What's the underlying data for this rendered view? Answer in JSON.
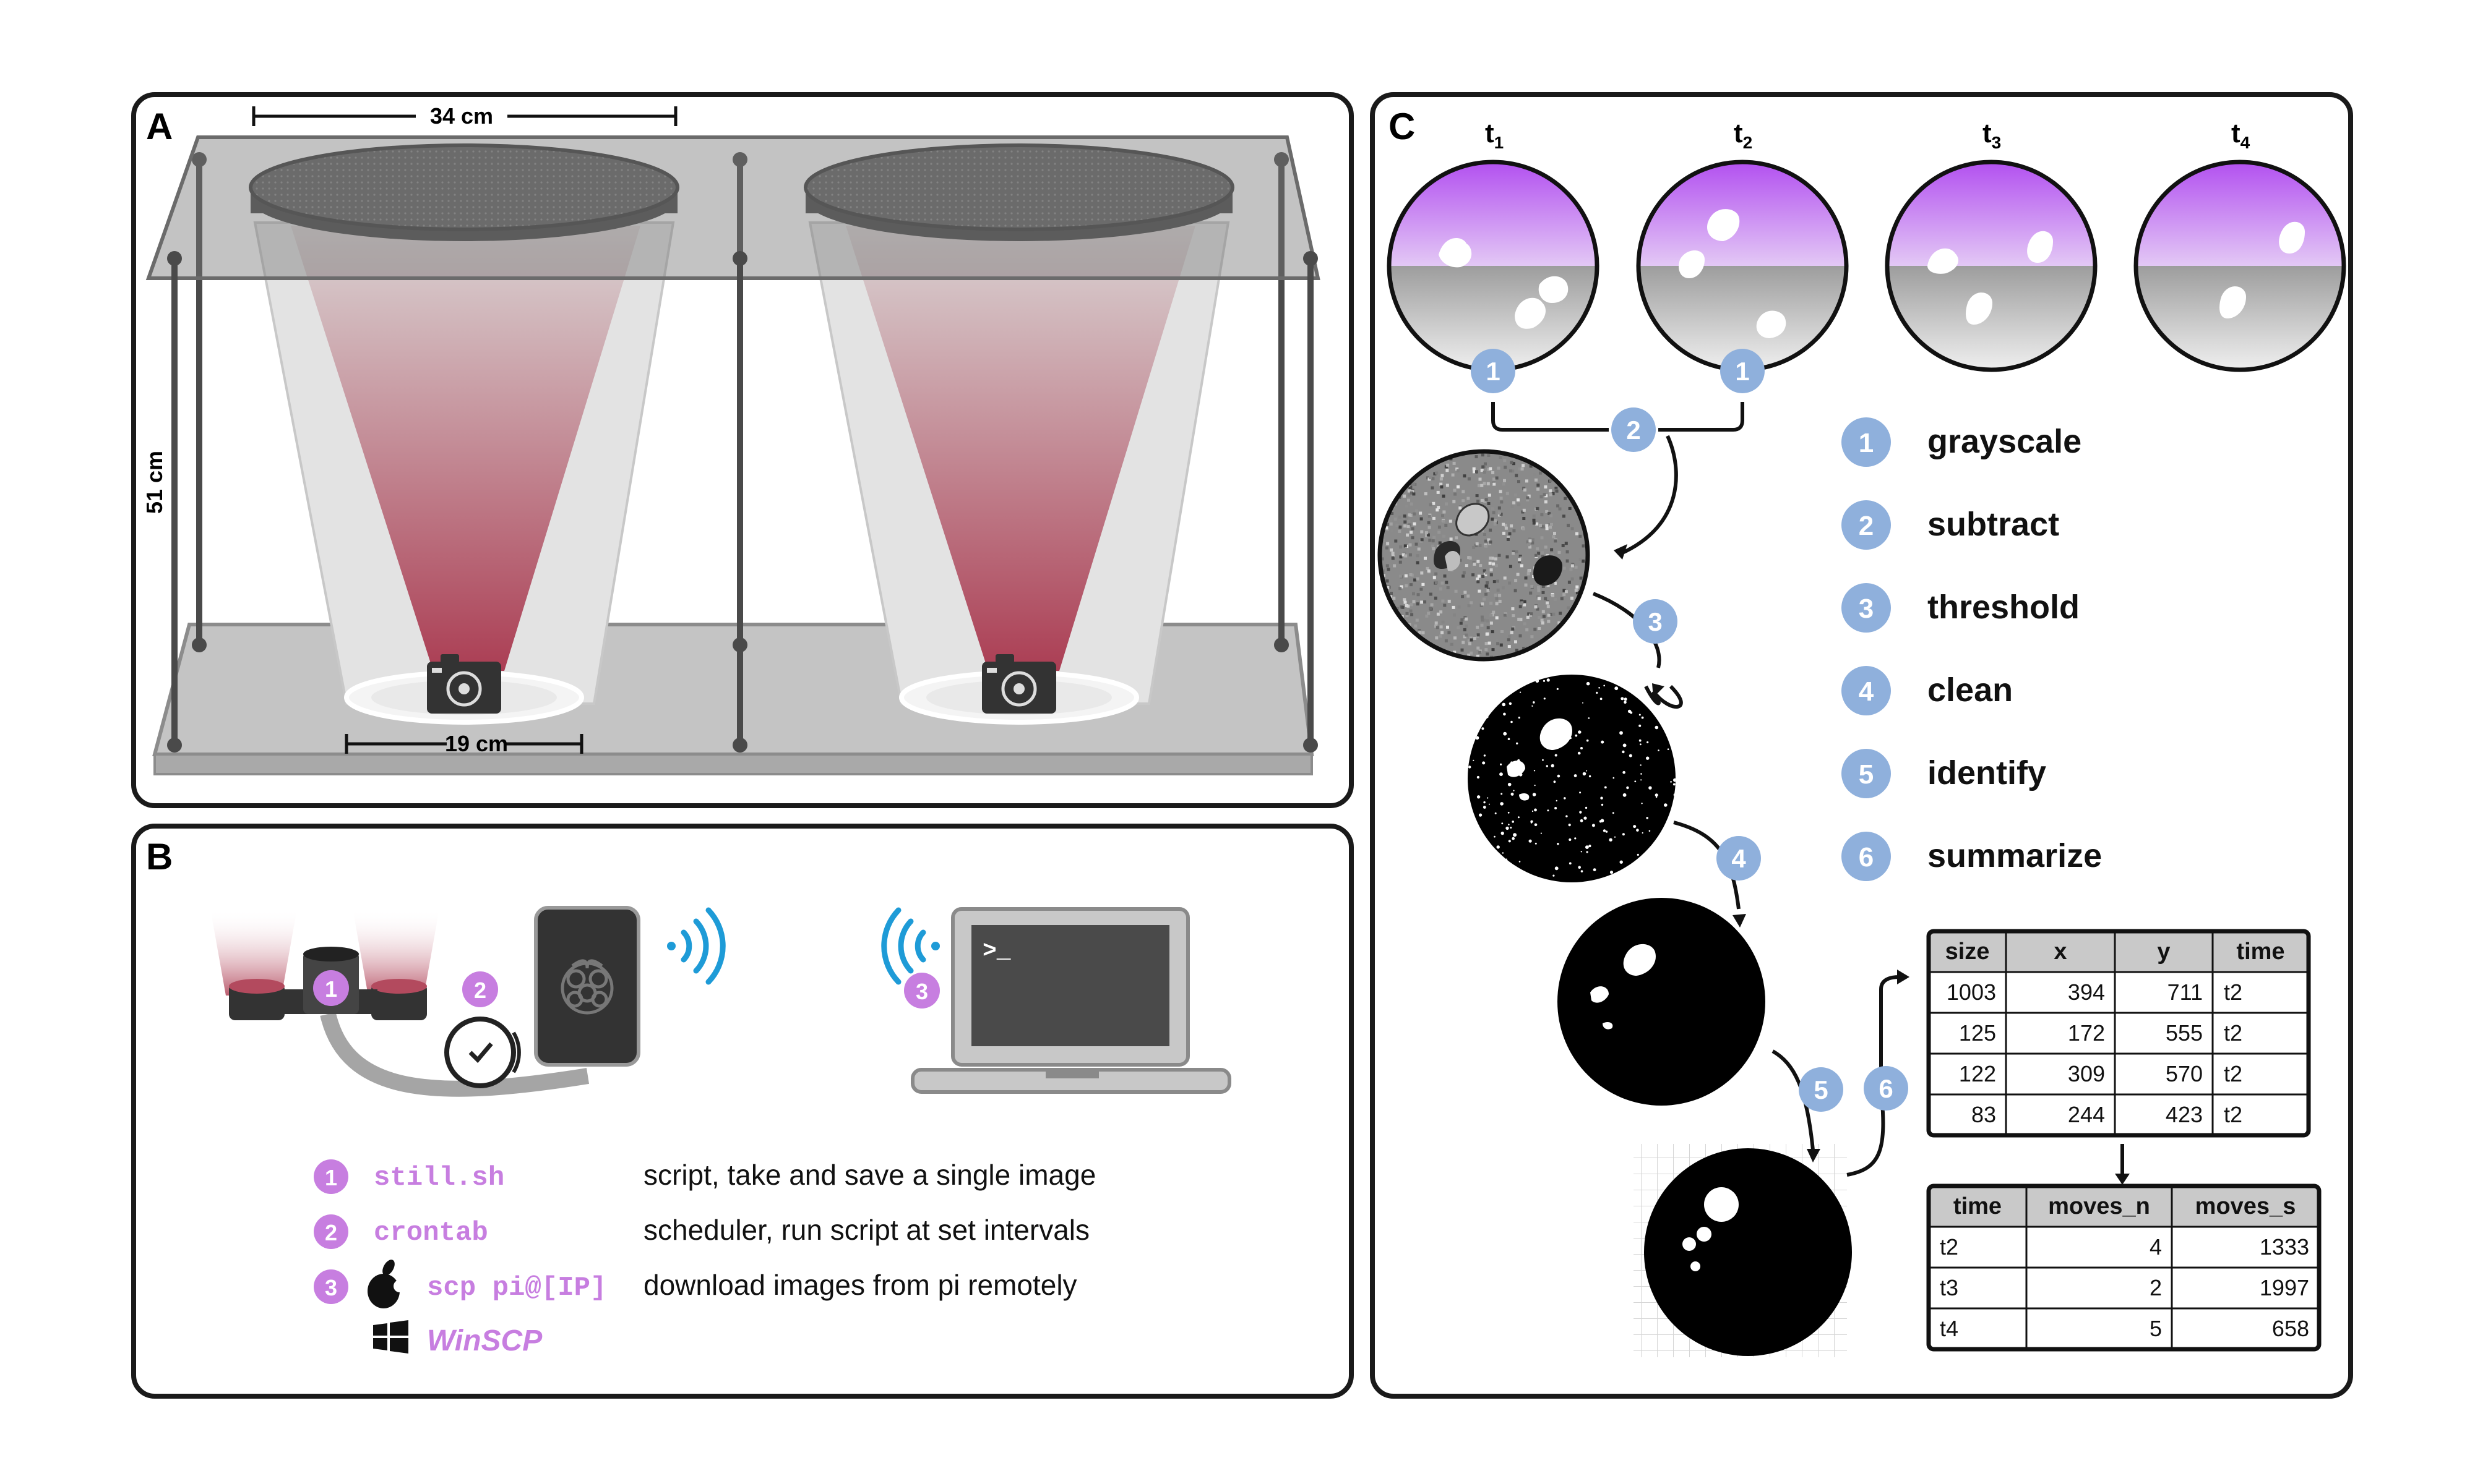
{
  "panels": {
    "a": {
      "letter": "A",
      "dim_top": "34 cm",
      "dim_side": "51 cm",
      "dim_bottom": "19 cm"
    },
    "b": {
      "letter": "B",
      "badges": [
        "1",
        "2",
        "3"
      ],
      "legend": [
        {
          "num": "1",
          "cmd": "still.sh",
          "desc": "script, take and save a single image"
        },
        {
          "num": "2",
          "cmd": "crontab",
          "desc": "scheduler, run script at set intervals"
        },
        {
          "num": "3",
          "cmd": "scp pi@[IP]",
          "desc": "download images from pi remotely"
        }
      ],
      "alt_cmd": "WinSCP",
      "terminal_prompt": ">_"
    },
    "c": {
      "letter": "C",
      "timepoints": [
        {
          "t": "t",
          "sub": "1"
        },
        {
          "t": "t",
          "sub": "2"
        },
        {
          "t": "t",
          "sub": "3"
        },
        {
          "t": "t",
          "sub": "4"
        }
      ],
      "flow_badges": [
        "1",
        "1",
        "2",
        "3",
        "4",
        "5",
        "6"
      ],
      "steps": [
        {
          "num": "1",
          "label": "grayscale"
        },
        {
          "num": "2",
          "label": "subtract"
        },
        {
          "num": "3",
          "label": "threshold"
        },
        {
          "num": "4",
          "label": "clean"
        },
        {
          "num": "5",
          "label": "identify"
        },
        {
          "num": "6",
          "label": "summarize"
        }
      ],
      "table1": {
        "headers": [
          "size",
          "x",
          "y",
          "time"
        ],
        "rows": [
          [
            "1003",
            "394",
            "711",
            "t2"
          ],
          [
            "125",
            "172",
            "555",
            "t2"
          ],
          [
            "122",
            "309",
            "570",
            "t2"
          ],
          [
            "83",
            "244",
            "423",
            "t2"
          ]
        ]
      },
      "table2": {
        "headers": [
          "time",
          "moves_n",
          "moves_s"
        ],
        "rows": [
          [
            "t2",
            "4",
            "1333"
          ],
          [
            "t3",
            "2",
            "1997"
          ],
          [
            "t4",
            "5",
            "658"
          ]
        ]
      }
    }
  },
  "colors": {
    "outline": "#1a1a1a",
    "badge_blue": "#8fb0dc",
    "badge_purple": "#c77ee0",
    "wifi_blue": "#1e9bd7",
    "plate_gray": "#9a9a9a",
    "tube_red": "#a8465a"
  }
}
